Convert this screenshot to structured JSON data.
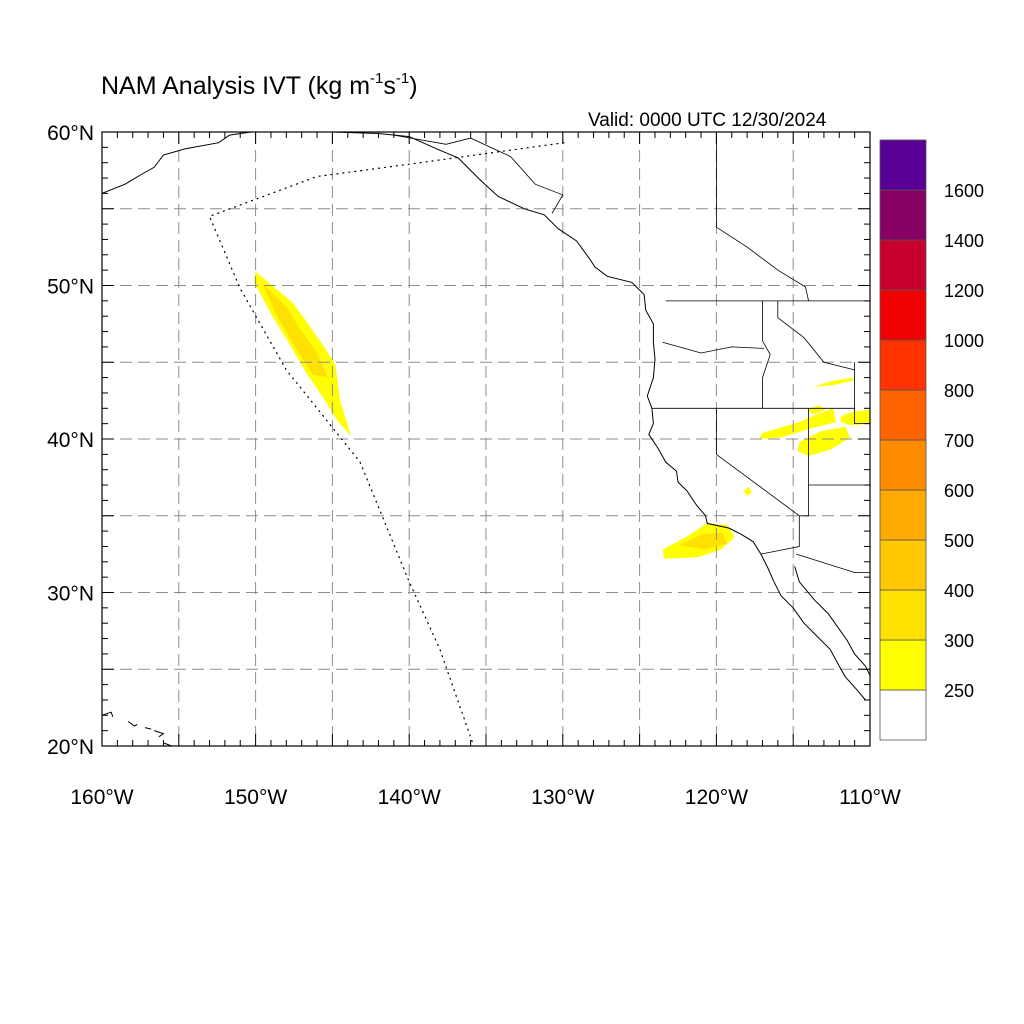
{
  "title": {
    "text": "NAM Analysis IVT (kg m",
    "sup1": "-1",
    "mid": "s",
    "sup2": "-1",
    "end": ")"
  },
  "valid_label": "Valid: 0000 UTC 12/30/2024",
  "map": {
    "lon_range": [
      -160,
      -110
    ],
    "lat_range": [
      20,
      60
    ],
    "lon_ticks": [
      {
        "value": -160,
        "label": "160°W"
      },
      {
        "value": -150,
        "label": "150°W"
      },
      {
        "value": -140,
        "label": "140°W"
      },
      {
        "value": -130,
        "label": "130°W"
      },
      {
        "value": -120,
        "label": "120°W"
      },
      {
        "value": -110,
        "label": "110°W"
      }
    ],
    "lat_ticks": [
      {
        "value": 20,
        "label": "20°N"
      },
      {
        "value": 30,
        "label": "30°N"
      },
      {
        "value": 40,
        "label": "40°N"
      },
      {
        "value": 50,
        "label": "50°N"
      },
      {
        "value": 60,
        "label": "60°N"
      }
    ],
    "grid": "dashed every 5°",
    "domain_boundary": [
      [
        -129.9,
        59.3
      ],
      [
        -140,
        57.9
      ],
      [
        -146,
        57.1
      ],
      [
        -153,
        54.5
      ],
      [
        -151,
        49.8
      ],
      [
        -148,
        44.5
      ],
      [
        -143.2,
        38.5
      ],
      [
        -140,
        30.7
      ],
      [
        -138,
        26.3
      ],
      [
        -135.8,
        20.0
      ]
    ]
  },
  "ivt_regions": [
    {
      "name": "offshore-band",
      "threshold": 250,
      "color": "#ffff00",
      "polygon": [
        [
          -150.0,
          50.9
        ],
        [
          -147.6,
          48.9
        ],
        [
          -146.8,
          47.8
        ],
        [
          -145.4,
          45.8
        ],
        [
          -144.8,
          44.8
        ],
        [
          -144.5,
          42.5
        ],
        [
          -144.1,
          41.2
        ],
        [
          -143.8,
          40.2
        ],
        [
          -144.6,
          41.1
        ],
        [
          -145.6,
          42.7
        ],
        [
          -146.7,
          44.3
        ],
        [
          -147.8,
          46.2
        ],
        [
          -148.9,
          48.0
        ],
        [
          -150.1,
          50.2
        ]
      ]
    },
    {
      "name": "offshore-band-core",
      "threshold": 300,
      "color": "#ffe100",
      "polygon": [
        [
          -149.6,
          50.2
        ],
        [
          -147.9,
          48.5
        ],
        [
          -147.2,
          47.3
        ],
        [
          -146.0,
          45.6
        ],
        [
          -145.3,
          44.0
        ],
        [
          -146.3,
          44.2
        ],
        [
          -147.3,
          45.8
        ],
        [
          -148.5,
          47.8
        ]
      ]
    },
    {
      "name": "socal-offshore",
      "threshold": 250,
      "color": "#ffff00",
      "polygon": [
        [
          -123.5,
          32.8
        ],
        [
          -122.0,
          33.6
        ],
        [
          -120.6,
          34.5
        ],
        [
          -119.3,
          34.4
        ],
        [
          -118.8,
          33.6
        ],
        [
          -119.7,
          32.8
        ],
        [
          -121.2,
          32.3
        ],
        [
          -123.4,
          32.2
        ]
      ]
    },
    {
      "name": "socal-offshore-core",
      "threshold": 300,
      "color": "#ffe100",
      "polygon": [
        [
          -122.4,
          33.1
        ],
        [
          -120.9,
          33.8
        ],
        [
          -119.6,
          33.9
        ],
        [
          -119.3,
          33.2
        ],
        [
          -120.7,
          32.8
        ]
      ]
    },
    {
      "name": "great-basin-north",
      "threshold": 250,
      "color": "#ffff00",
      "polygon": [
        [
          -117.0,
          40.4
        ],
        [
          -114.6,
          41.1
        ],
        [
          -113.5,
          41.6
        ],
        [
          -112.4,
          42.0
        ],
        [
          -112.2,
          41.1
        ],
        [
          -113.8,
          40.7
        ],
        [
          -115.8,
          40.1
        ],
        [
          -117.2,
          40.0
        ]
      ]
    },
    {
      "name": "great-basin-south",
      "threshold": 250,
      "color": "#ffff00",
      "polygon": [
        [
          -114.6,
          39.8
        ],
        [
          -113.2,
          40.5
        ],
        [
          -111.6,
          40.8
        ],
        [
          -111.3,
          40.1
        ],
        [
          -112.6,
          39.3
        ],
        [
          -114.0,
          38.9
        ],
        [
          -114.7,
          39.2
        ]
      ]
    },
    {
      "name": "utah-east",
      "threshold": 250,
      "color": "#ffff00",
      "polygon": [
        [
          -111.9,
          41.5
        ],
        [
          -111.0,
          41.8
        ],
        [
          -110.0,
          41.9
        ],
        [
          -110.0,
          41.0
        ],
        [
          -111.2,
          40.9
        ],
        [
          -111.9,
          41.1
        ]
      ]
    },
    {
      "name": "nevada-spot",
      "threshold": 250,
      "color": "#ffff00",
      "polygon": [
        [
          -114.1,
          41.9
        ],
        [
          -113.3,
          42.2
        ],
        [
          -112.9,
          41.9
        ],
        [
          -113.7,
          41.6
        ]
      ]
    },
    {
      "name": "sierra-spot",
      "threshold": 250,
      "color": "#ffff00",
      "polygon": [
        [
          -118.2,
          36.6
        ],
        [
          -117.9,
          36.9
        ],
        [
          -117.7,
          36.5
        ],
        [
          -118.0,
          36.3
        ]
      ]
    },
    {
      "name": "idaho-streak",
      "threshold": 250,
      "color": "#ffff00",
      "polygon": [
        [
          -113.7,
          43.4
        ],
        [
          -112.4,
          43.8
        ],
        [
          -111.1,
          44.0
        ],
        [
          -111.1,
          43.8
        ],
        [
          -112.5,
          43.5
        ]
      ]
    }
  ],
  "coastlines": {
    "alaska": [
      [
        -160,
        56.0
      ],
      [
        -158.5,
        56.6
      ],
      [
        -157.5,
        57.2
      ],
      [
        -156.6,
        57.7
      ],
      [
        -156.0,
        58.5
      ],
      [
        -154.6,
        58.9
      ],
      [
        -152.4,
        59.3
      ],
      [
        -151.7,
        59.8
      ],
      [
        -150.3,
        60.0
      ]
    ],
    "north_america": [
      [
        -145.0,
        60.0
      ],
      [
        -142.0,
        59.9
      ],
      [
        -140.0,
        59.7
      ],
      [
        -138.2,
        58.9
      ],
      [
        -136.8,
        58.3
      ],
      [
        -136.0,
        57.5
      ],
      [
        -135.3,
        56.8
      ],
      [
        -134.2,
        55.8
      ],
      [
        -132.5,
        55.0
      ],
      [
        -131.2,
        54.6
      ],
      [
        -130.3,
        53.7
      ],
      [
        -129.1,
        52.9
      ],
      [
        -128.3,
        51.8
      ],
      [
        -127.9,
        51.2
      ],
      [
        -127.1,
        50.6
      ],
      [
        -125.5,
        50.2
      ],
      [
        -124.7,
        49.4
      ],
      [
        -124.6,
        48.4
      ],
      [
        -124.1,
        47.5
      ],
      [
        -124.1,
        46.3
      ],
      [
        -124.0,
        45.2
      ],
      [
        -124.1,
        44.0
      ],
      [
        -124.5,
        42.8
      ],
      [
        -124.2,
        42.0
      ],
      [
        -124.1,
        41.0
      ],
      [
        -124.4,
        40.3
      ],
      [
        -123.8,
        39.4
      ],
      [
        -123.3,
        38.5
      ],
      [
        -122.6,
        37.9
      ],
      [
        -122.5,
        37.2
      ],
      [
        -121.9,
        36.6
      ],
      [
        -121.3,
        35.7
      ],
      [
        -120.7,
        35.0
      ],
      [
        -120.6,
        34.5
      ],
      [
        -119.2,
        34.2
      ],
      [
        -118.4,
        33.8
      ],
      [
        -117.6,
        33.3
      ],
      [
        -117.1,
        32.5
      ],
      [
        -116.6,
        31.5
      ],
      [
        -116.3,
        30.8
      ],
      [
        -115.8,
        29.8
      ],
      [
        -115.0,
        29.0
      ],
      [
        -114.3,
        28.0
      ],
      [
        -113.5,
        27.2
      ],
      [
        -112.6,
        26.3
      ],
      [
        -112.0,
        25.2
      ],
      [
        -111.6,
        24.5
      ],
      [
        -110.8,
        23.6
      ],
      [
        -110.3,
        23.0
      ]
    ],
    "gulf_of_california": [
      [
        -114.9,
        31.7
      ],
      [
        -114.6,
        30.7
      ],
      [
        -113.6,
        29.5
      ],
      [
        -112.7,
        28.6
      ],
      [
        -112.0,
        27.6
      ],
      [
        -111.5,
        26.9
      ],
      [
        -111.0,
        26.0
      ],
      [
        -110.3,
        25.2
      ],
      [
        -110.0,
        24.6
      ]
    ],
    "hawaii": [
      [
        [
          -160.0,
          22.0
        ],
        [
          -159.4,
          22.2
        ],
        [
          -159.3,
          21.9
        ]
      ],
      [
        [
          -158.3,
          21.6
        ],
        [
          -157.9,
          21.3
        ],
        [
          -157.7,
          21.4
        ]
      ],
      [
        [
          -157.2,
          21.2
        ],
        [
          -156.8,
          21.1
        ]
      ],
      [
        [
          -156.6,
          21.0
        ],
        [
          -156.0,
          20.8
        ],
        [
          -156.3,
          20.6
        ]
      ],
      [
        [
          -156.0,
          20.2
        ],
        [
          -155.2,
          19.9
        ],
        [
          -155.0,
          20.0
        ]
      ]
    ]
  },
  "political_lines": [
    [
      [
        -141.0,
        60.0
      ],
      [
        -141.0,
        59.8
      ]
    ],
    [
      [
        -141.0,
        59.8
      ],
      [
        -137.6,
        59.2
      ],
      [
        -136.0,
        59.6
      ],
      [
        -133.4,
        58.4
      ],
      [
        -131.8,
        56.6
      ],
      [
        -130.0,
        55.9
      ],
      [
        -130.7,
        54.7
      ]
    ],
    [
      [
        -123.3,
        49.0
      ],
      [
        -110.0,
        49.0
      ]
    ],
    [
      [
        -120.0,
        60.0
      ],
      [
        -120.0,
        53.8
      ],
      [
        -118.0,
        52.5
      ],
      [
        -116.0,
        51.0
      ],
      [
        -114.2,
        49.9
      ],
      [
        -114.0,
        49.0
      ]
    ],
    [
      [
        -124.2,
        42.0
      ],
      [
        -111.0,
        42.0
      ]
    ],
    [
      [
        -120.0,
        42.0
      ],
      [
        -120.0,
        39.0
      ],
      [
        -114.6,
        35.0
      ],
      [
        -114.6,
        33.0
      ],
      [
        -117.1,
        32.5
      ]
    ],
    [
      [
        -117.0,
        49.0
      ],
      [
        -117.0,
        46.4
      ],
      [
        -116.5,
        45.5
      ],
      [
        -117.0,
        44.0
      ],
      [
        -117.0,
        42.0
      ]
    ],
    [
      [
        -123.5,
        46.3
      ],
      [
        -121.0,
        45.6
      ],
      [
        -119.0,
        46.0
      ],
      [
        -116.9,
        45.9
      ]
    ],
    [
      [
        -116.0,
        49.0
      ],
      [
        -116.0,
        47.9
      ],
      [
        -114.3,
        46.6
      ],
      [
        -113.0,
        45.0
      ],
      [
        -111.0,
        44.5
      ]
    ],
    [
      [
        -114.0,
        42.0
      ],
      [
        -114.0,
        37.0
      ],
      [
        -109.0,
        37.0
      ]
    ],
    [
      [
        -114.0,
        37.0
      ],
      [
        -114.0,
        35.0
      ],
      [
        -114.6,
        35.0
      ]
    ],
    [
      [
        -111.0,
        45.0
      ],
      [
        -111.0,
        41.0
      ],
      [
        -110.0,
        41.0
      ]
    ],
    [
      [
        -114.8,
        32.5
      ],
      [
        -111.0,
        31.3
      ],
      [
        -110.0,
        31.3
      ]
    ]
  ],
  "colorbar": {
    "levels": [
      250,
      300,
      400,
      500,
      600,
      700,
      800,
      1000,
      1200,
      1400,
      1600
    ],
    "colors": [
      "#ffffff",
      "#ffff00",
      "#ffe100",
      "#ffc800",
      "#ffaa00",
      "#ff8c00",
      "#ff6400",
      "#ff3200",
      "#f00000",
      "#c8002d",
      "#870064",
      "#5a0096"
    ],
    "labels": [
      "250",
      "300",
      "400",
      "500",
      "600",
      "700",
      "800",
      "1000",
      "1200",
      "1400",
      "1600"
    ]
  }
}
